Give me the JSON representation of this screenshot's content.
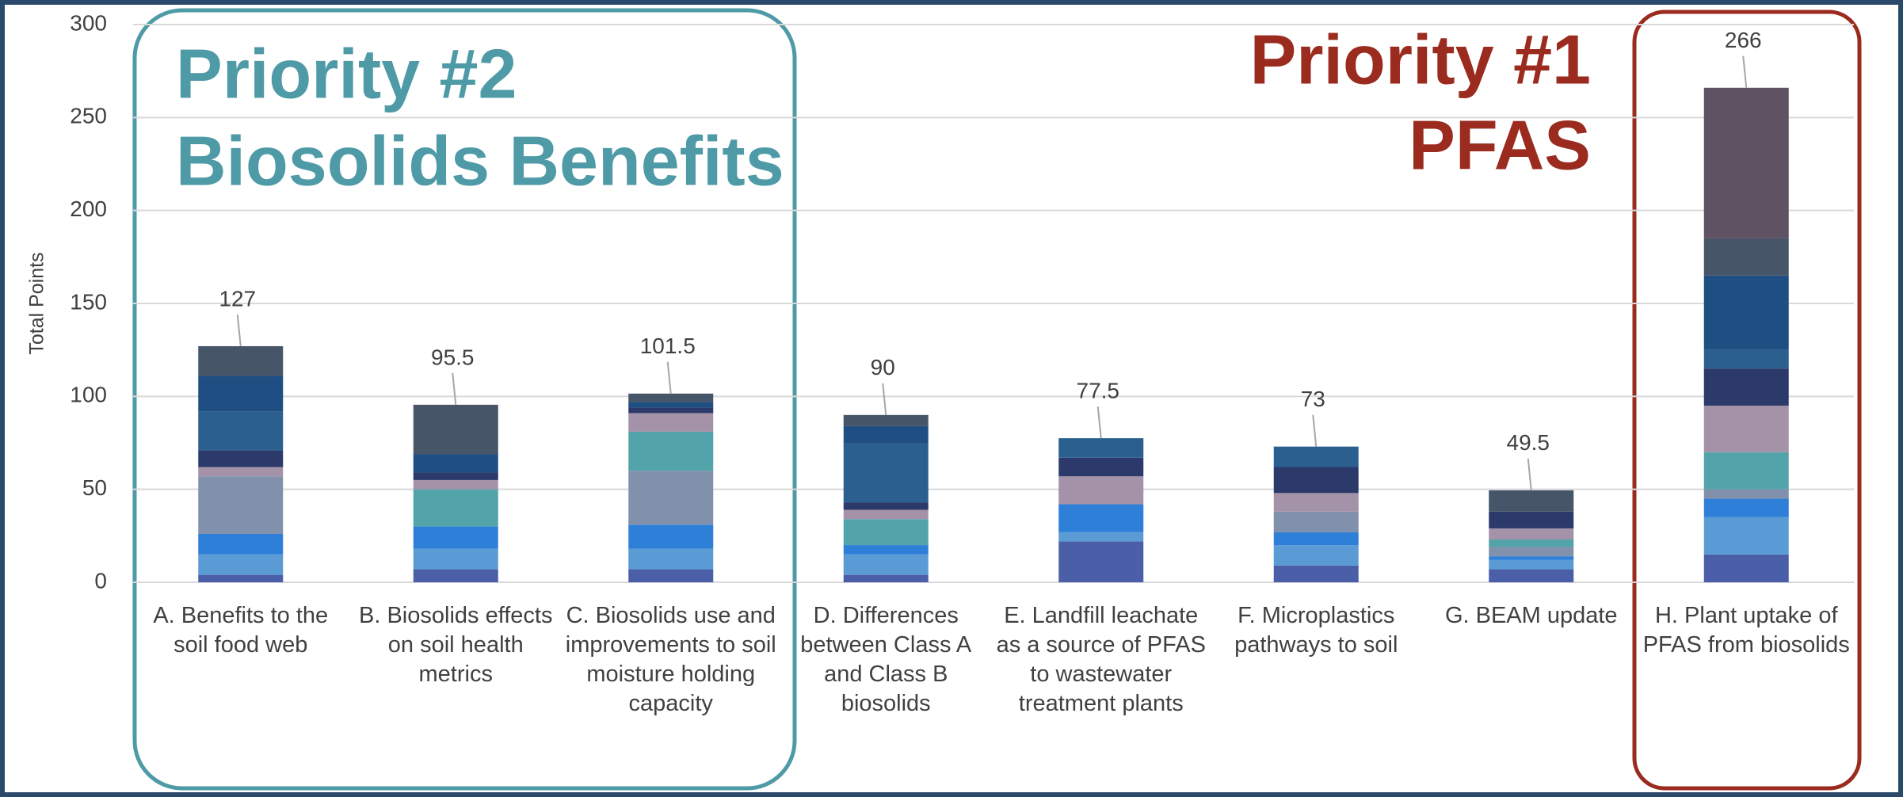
{
  "chart_data": {
    "type": "stacked_bar",
    "y_axis_label": "Total Points",
    "categories": [
      "A. Benefits to the soil food web",
      "B. Biosolids effects on soil health metrics",
      "C. Biosolids use and improvements to soil moisture holding capacity",
      "D. Differences between Class A and Class B biosolids",
      "E. Landfill leachate as a source of PFAS to wastewater treatment plants",
      "F. Microplastics pathways to soil",
      "G. BEAM update",
      "H. Plant uptake of PFAS from biosolids"
    ],
    "series": [
      {
        "color": "#4a5fa8",
        "values": [
          4,
          7,
          7,
          4,
          22,
          9,
          7,
          15
        ]
      },
      {
        "color": "#5b9bd5",
        "values": [
          11,
          11,
          11,
          11,
          5,
          11,
          5,
          20
        ]
      },
      {
        "color": "#2e7fd8",
        "values": [
          11,
          12,
          13,
          5,
          15,
          7,
          2,
          10
        ]
      },
      {
        "color": "#8191ab",
        "values": [
          31,
          0,
          29,
          0,
          0,
          11,
          5,
          5
        ]
      },
      {
        "color": "#52a3aa",
        "values": [
          0,
          20,
          21,
          14,
          0,
          0,
          4,
          20
        ]
      },
      {
        "color": "#a392a8",
        "values": [
          5,
          5,
          10,
          5,
          15,
          10,
          6,
          25
        ]
      },
      {
        "color": "#2c3a6b",
        "values": [
          9,
          4,
          3,
          4,
          10,
          14,
          9,
          20
        ]
      },
      {
        "color": "#2a5f8f",
        "values": [
          21,
          0,
          0,
          32,
          10.5,
          11,
          0,
          10
        ]
      },
      {
        "color": "#1f4e82",
        "values": [
          19,
          10,
          3,
          9,
          0,
          0,
          0,
          40
        ]
      },
      {
        "color": "#475569",
        "values": [
          16,
          26.5,
          4.5,
          6,
          0,
          0,
          11.5,
          20
        ]
      },
      {
        "color": "#5f5262",
        "values": [
          0,
          0,
          0,
          0,
          0,
          0,
          0,
          81
        ]
      }
    ],
    "totals": [
      127,
      95.5,
      101.5,
      90,
      77.5,
      73,
      49.5,
      266
    ],
    "ylim": [
      0,
      300
    ],
    "yticks": [
      0,
      50,
      100,
      150,
      200,
      250,
      300
    ],
    "grid": true,
    "annotations": [
      {
        "text": "Priority #2",
        "color": "#4e9aa6"
      },
      {
        "text": "Biosolids Benefits",
        "color": "#4e9aa6"
      },
      {
        "text": "Priority #1",
        "color": "#9a2b1e"
      },
      {
        "text": "PFAS",
        "color": "#9a2b1e"
      }
    ]
  }
}
